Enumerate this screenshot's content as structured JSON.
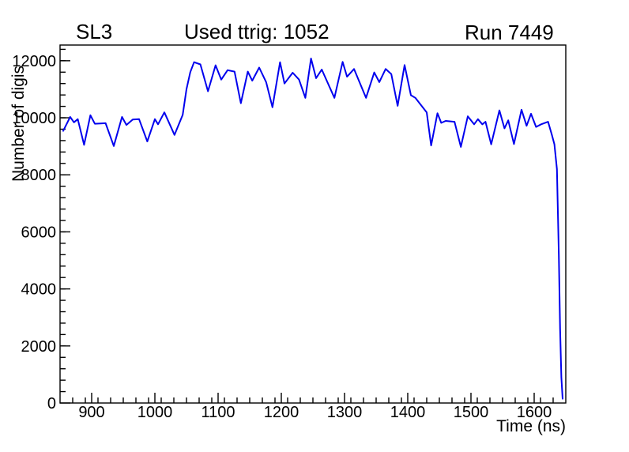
{
  "header": {
    "left": "SL3",
    "center": "Used ttrig: 1052",
    "right": "Run 7449"
  },
  "chart_data": {
    "type": "line",
    "title": "Used ttrig: 1052",
    "xlabel": "Time (ns)",
    "ylabel": "Number of digis",
    "xlim": [
      850,
      1650
    ],
    "ylim": [
      0,
      12550
    ],
    "x_major_ticks": [
      900,
      1000,
      1100,
      1200,
      1300,
      1400,
      1500,
      1600
    ],
    "x_minor_step": 20,
    "y_major_ticks": [
      0,
      2000,
      4000,
      6000,
      8000,
      10000,
      12000
    ],
    "y_minor_step": 400,
    "grid": false,
    "legend": "none",
    "line_color": "#0000ee",
    "frame_color": "#000000",
    "series": [
      {
        "name": "number-of-digis-vs-time",
        "points": [
          [
            855,
            9540
          ],
          [
            866,
            10030
          ],
          [
            872,
            9840
          ],
          [
            878,
            9950
          ],
          [
            888,
            9050
          ],
          [
            898,
            10090
          ],
          [
            905,
            9790
          ],
          [
            914,
            9800
          ],
          [
            922,
            9810
          ],
          [
            935,
            9010
          ],
          [
            948,
            10030
          ],
          [
            955,
            9750
          ],
          [
            965,
            9940
          ],
          [
            975,
            9950
          ],
          [
            988,
            9170
          ],
          [
            1000,
            9950
          ],
          [
            1005,
            9770
          ],
          [
            1015,
            10190
          ],
          [
            1031,
            9400
          ],
          [
            1044,
            10100
          ],
          [
            1050,
            11000
          ],
          [
            1056,
            11600
          ],
          [
            1062,
            11950
          ],
          [
            1072,
            11870
          ],
          [
            1084,
            10930
          ],
          [
            1096,
            11840
          ],
          [
            1105,
            11340
          ],
          [
            1115,
            11670
          ],
          [
            1126,
            11620
          ],
          [
            1136,
            10510
          ],
          [
            1147,
            11620
          ],
          [
            1154,
            11300
          ],
          [
            1165,
            11760
          ],
          [
            1176,
            11250
          ],
          [
            1186,
            10370
          ],
          [
            1198,
            11950
          ],
          [
            1205,
            11200
          ],
          [
            1218,
            11580
          ],
          [
            1228,
            11340
          ],
          [
            1238,
            10700
          ],
          [
            1247,
            12080
          ],
          [
            1255,
            11390
          ],
          [
            1264,
            11690
          ],
          [
            1284,
            10700
          ],
          [
            1297,
            11960
          ],
          [
            1304,
            11440
          ],
          [
            1315,
            11710
          ],
          [
            1334,
            10700
          ],
          [
            1347,
            11590
          ],
          [
            1355,
            11250
          ],
          [
            1365,
            11710
          ],
          [
            1374,
            11530
          ],
          [
            1384,
            10420
          ],
          [
            1395,
            11850
          ],
          [
            1405,
            10790
          ],
          [
            1412,
            10700
          ],
          [
            1430,
            10190
          ],
          [
            1437,
            9030
          ],
          [
            1447,
            10160
          ],
          [
            1453,
            9820
          ],
          [
            1460,
            9890
          ],
          [
            1474,
            9860
          ],
          [
            1484,
            8980
          ],
          [
            1495,
            10050
          ],
          [
            1505,
            9770
          ],
          [
            1511,
            9950
          ],
          [
            1518,
            9770
          ],
          [
            1523,
            9860
          ],
          [
            1532,
            9070
          ],
          [
            1545,
            10260
          ],
          [
            1553,
            9630
          ],
          [
            1559,
            9910
          ],
          [
            1568,
            9080
          ],
          [
            1580,
            10280
          ],
          [
            1588,
            9720
          ],
          [
            1595,
            10140
          ],
          [
            1603,
            9680
          ],
          [
            1611,
            9770
          ],
          [
            1622,
            9860
          ],
          [
            1628,
            9400
          ],
          [
            1632,
            9070
          ],
          [
            1636,
            8200
          ],
          [
            1639,
            5200
          ],
          [
            1641,
            2600
          ],
          [
            1643,
            900
          ],
          [
            1645,
            150
          ]
        ]
      }
    ]
  }
}
